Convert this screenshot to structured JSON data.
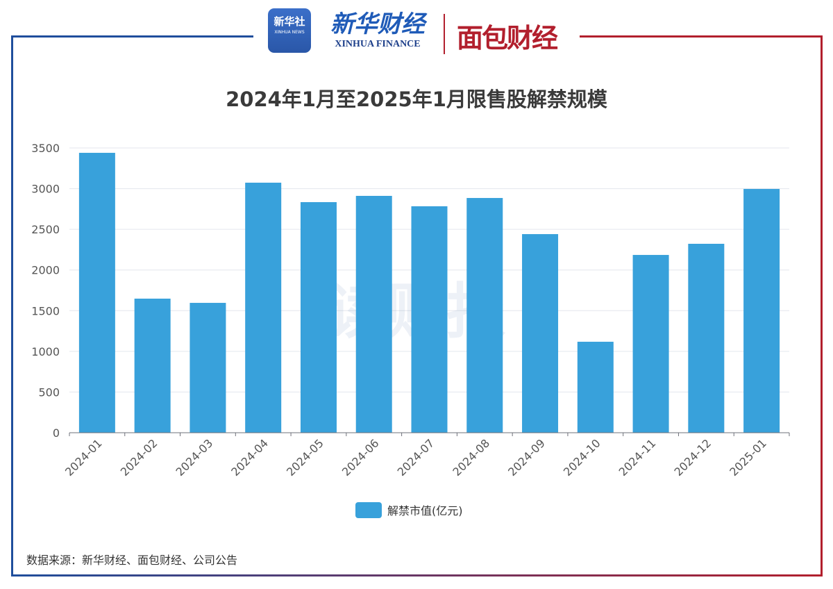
{
  "header": {
    "logo_xinhua_news": "新华社",
    "logo_xinhua_news_en": "XINHUA NEWS",
    "logo_xinhua_finance": "新华财经",
    "logo_xinhua_finance_en": "XINHUA FINANCE",
    "logo_mianbao": "面包财经"
  },
  "watermark": "读财报",
  "source": "数据来源：新华财经、面包财经、公司公告",
  "chart_data": {
    "type": "bar",
    "title": "2024年1月至2025年1月限售股解禁规模",
    "categories": [
      "2024-01",
      "2024-02",
      "2024-03",
      "2024-04",
      "2024-05",
      "2024-06",
      "2024-07",
      "2024-08",
      "2024-09",
      "2024-10",
      "2024-11",
      "2024-12",
      "2025-01"
    ],
    "series": [
      {
        "name": "解禁市值(亿元)",
        "values": [
          3440,
          1648,
          1596,
          3073,
          2834,
          2911,
          2783,
          2885,
          2441,
          1118,
          2185,
          2322,
          2996
        ],
        "color": "#38a1db"
      }
    ],
    "yticks": [
      0,
      500,
      1000,
      1500,
      2000,
      2500,
      3000,
      3500
    ],
    "ylim": [
      0,
      3500
    ],
    "grid": true,
    "legend": "bottom",
    "colors": {
      "bar": "#38a1db",
      "frame_left": "#1f4e9c",
      "frame_right": "#b21f2d"
    }
  }
}
